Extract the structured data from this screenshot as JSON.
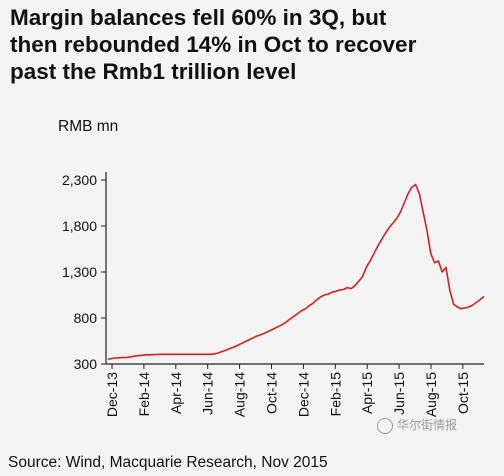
{
  "title_lines": [
    "Margin balances fell 60% in 3Q, but",
    "then rebounded 14% in Oct to recover",
    "past the Rmb1 trillion level"
  ],
  "source": "Source: Wind, Macquarie Research, Nov 2015",
  "watermark": "华尔街情报",
  "chart_data": {
    "type": "line",
    "title": "Margin balances fell 60% in 3Q, but then rebounded 14% in Oct to recover past the Rmb1 trillion level",
    "ylabel": "RMB mn",
    "xlabel": "",
    "ylim": [
      300,
      2300
    ],
    "yticks": [
      300,
      800,
      1300,
      1800,
      2300
    ],
    "ytick_labels": [
      "300",
      "800",
      "1,300",
      "1,800",
      "2,300"
    ],
    "xticks": [
      "Dec-13",
      "Feb-14",
      "Apr-14",
      "Jun-14",
      "Aug-14",
      "Oct-14",
      "Dec-14",
      "Feb-15",
      "Apr-15",
      "Jun-15",
      "Aug-15",
      "Oct-15"
    ],
    "grid": false,
    "color": "#d42020",
    "series": [
      {
        "x": [
          0,
          1,
          2,
          3,
          4,
          5,
          6,
          7,
          8,
          9,
          10,
          11,
          12,
          13,
          14,
          15,
          16,
          17,
          18,
          19,
          20,
          21,
          22,
          23,
          24,
          25,
          26,
          27,
          28,
          29,
          30,
          31,
          32,
          33,
          34,
          35,
          36,
          37,
          38,
          39,
          40,
          41,
          42,
          43,
          44,
          45,
          46,
          47,
          48,
          49,
          50,
          51,
          52,
          53,
          54,
          55,
          56,
          57,
          58,
          59,
          60,
          61,
          62,
          63,
          64,
          65,
          66,
          67,
          68,
          69,
          70,
          71,
          72,
          73,
          74,
          75,
          76,
          77,
          78,
          79,
          80,
          81,
          82,
          83,
          84,
          85,
          86,
          87,
          88,
          89,
          90,
          91,
          92,
          93,
          94,
          95,
          96,
          97,
          98,
          99
        ],
        "values": [
          350,
          360,
          365,
          368,
          370,
          372,
          378,
          385,
          390,
          395,
          400,
          400,
          402,
          403,
          405,
          405,
          405,
          405,
          405,
          405,
          405,
          405,
          405,
          405,
          405,
          405,
          405,
          405,
          410,
          420,
          435,
          450,
          465,
          480,
          500,
          520,
          540,
          560,
          580,
          600,
          615,
          630,
          650,
          670,
          690,
          710,
          730,
          760,
          790,
          820,
          850,
          880,
          900,
          935,
          960,
          1000,
          1030,
          1050,
          1060,
          1080,
          1090,
          1105,
          1110,
          1130,
          1120,
          1150,
          1200,
          1250,
          1350,
          1420,
          1500,
          1580,
          1650,
          1720,
          1780,
          1830,
          1880,
          1950,
          2050,
          2150,
          2220,
          2250,
          2150,
          1950,
          1750,
          1500,
          1400,
          1420,
          1300,
          1350,
          1100,
          950,
          920,
          900,
          910,
          920,
          940,
          970,
          1000,
          1035
        ]
      }
    ]
  }
}
